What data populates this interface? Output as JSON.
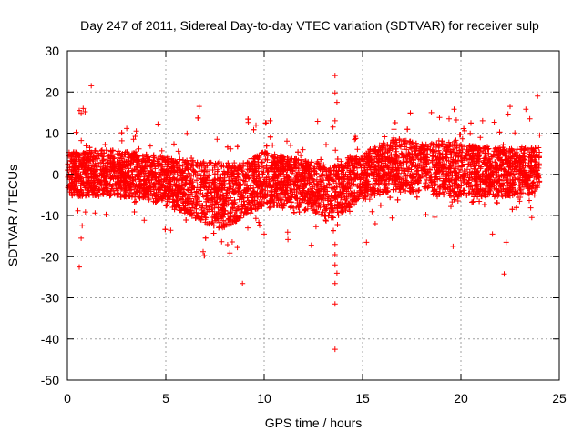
{
  "chart_data": {
    "type": "scatter",
    "title": "Day 247 of 2011, Sidereal Day-to-day VTEC variation (SDTVAR) for receiver sulp",
    "xlabel": "GPS time / hours",
    "ylabel": "SDTVAR / TECUs",
    "xlim": [
      0,
      25
    ],
    "ylim": [
      -50,
      30
    ],
    "xticks": [
      0,
      5,
      10,
      15,
      20,
      25
    ],
    "yticks": [
      -50,
      -40,
      -30,
      -20,
      -10,
      0,
      10,
      20,
      30
    ],
    "grid": true,
    "marker": "+",
    "color": "#ff0000",
    "series": [
      {
        "name": "SDTVAR",
        "x_range": [
          0,
          24
        ],
        "band_profile": [
          {
            "x": 0,
            "center": 0.0,
            "halfwidth": 5.5
          },
          {
            "x": 2,
            "center": 0.5,
            "halfwidth": 5.5
          },
          {
            "x": 4,
            "center": -0.5,
            "halfwidth": 5.5
          },
          {
            "x": 6,
            "center": -3.0,
            "halfwidth": 6.5
          },
          {
            "x": 7.5,
            "center": -5.0,
            "halfwidth": 8.0
          },
          {
            "x": 8.5,
            "center": -5.0,
            "halfwidth": 7.0
          },
          {
            "x": 10,
            "center": -1.0,
            "halfwidth": 6.5
          },
          {
            "x": 12,
            "center": -2.5,
            "halfwidth": 6.0
          },
          {
            "x": 13.5,
            "center": -4.5,
            "halfwidth": 6.5
          },
          {
            "x": 15,
            "center": -0.5,
            "halfwidth": 5.5
          },
          {
            "x": 16.5,
            "center": 2.5,
            "halfwidth": 6.5
          },
          {
            "x": 18,
            "center": 1.5,
            "halfwidth": 6.0
          },
          {
            "x": 19.5,
            "center": 1.0,
            "halfwidth": 6.5
          },
          {
            "x": 22,
            "center": 0.5,
            "halfwidth": 6.0
          },
          {
            "x": 24,
            "center": 1.0,
            "halfwidth": 5.5
          }
        ],
        "outliers": [
          {
            "x": 0.6,
            "y": 15.5
          },
          {
            "x": 0.7,
            "y": 14.8
          },
          {
            "x": 0.8,
            "y": 16.0
          },
          {
            "x": 0.9,
            "y": 15.2
          },
          {
            "x": 0.6,
            "y": -22.5
          },
          {
            "x": 0.7,
            "y": -15.5
          },
          {
            "x": 0.75,
            "y": -12.5
          },
          {
            "x": 3.5,
            "y": 10.5
          },
          {
            "x": 4.6,
            "y": 12.2
          },
          {
            "x": 6.7,
            "y": 16.5
          },
          {
            "x": 6.9,
            "y": -18.8
          },
          {
            "x": 8.3,
            "y": 6.2
          },
          {
            "x": 8.9,
            "y": -26.5
          },
          {
            "x": 10.1,
            "y": 12.5
          },
          {
            "x": 10.3,
            "y": 13.0
          },
          {
            "x": 10.0,
            "y": -14.5
          },
          {
            "x": 12.4,
            "y": -17.2
          },
          {
            "x": 13.6,
            "y": 24.0
          },
          {
            "x": 13.6,
            "y": 19.8
          },
          {
            "x": 13.7,
            "y": 17.5
          },
          {
            "x": 13.6,
            "y": 13.0
          },
          {
            "x": 13.5,
            "y": 11.5
          },
          {
            "x": 13.6,
            "y": -17.0
          },
          {
            "x": 13.6,
            "y": -19.5
          },
          {
            "x": 13.6,
            "y": -22.0
          },
          {
            "x": 13.7,
            "y": -24.0
          },
          {
            "x": 13.6,
            "y": -26.5
          },
          {
            "x": 13.6,
            "y": -31.5
          },
          {
            "x": 13.6,
            "y": -42.5
          },
          {
            "x": 15.2,
            "y": -16.5
          },
          {
            "x": 18.5,
            "y": 15.0
          },
          {
            "x": 19.4,
            "y": 13.5
          },
          {
            "x": 19.6,
            "y": -17.5
          },
          {
            "x": 21.1,
            "y": 13.0
          },
          {
            "x": 21.6,
            "y": -14.5
          },
          {
            "x": 22.2,
            "y": -24.2
          },
          {
            "x": 22.5,
            "y": 16.5
          },
          {
            "x": 22.3,
            "y": -16.5
          },
          {
            "x": 23.3,
            "y": 15.8
          },
          {
            "x": 23.5,
            "y": 13.5
          },
          {
            "x": 23.9,
            "y": 19.0
          },
          {
            "x": 24.0,
            "y": 9.5
          },
          {
            "x": 23.6,
            "y": -10.5
          }
        ]
      }
    ]
  }
}
